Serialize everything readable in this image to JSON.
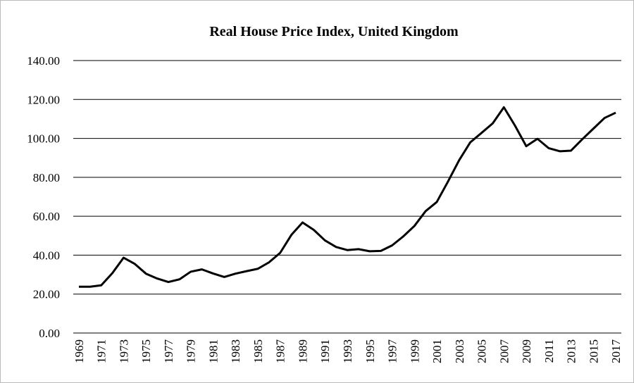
{
  "chart_data": {
    "type": "line",
    "title": "Real House Price Index, United Kingdom",
    "categories": [
      "1969",
      null,
      "1971",
      null,
      "1973",
      null,
      "1975",
      null,
      "1977",
      null,
      "1979",
      null,
      "1981",
      null,
      "1983",
      null,
      "1985",
      null,
      "1987",
      null,
      "1989",
      null,
      "1991",
      null,
      "1993",
      null,
      "1995",
      null,
      "1997",
      null,
      "1999",
      null,
      "2001",
      null,
      "2003",
      null,
      "2005",
      null,
      "2007",
      null,
      "2009",
      null,
      "2011",
      null,
      "2013",
      null,
      "2015",
      null,
      "2017"
    ],
    "values": [
      23.8,
      23.8,
      24.5,
      30.8,
      38.7,
      35.5,
      30.5,
      28.0,
      26.2,
      27.6,
      31.5,
      32.7,
      30.6,
      28.8,
      30.5,
      31.8,
      33.0,
      36.3,
      41.2,
      50.4,
      56.8,
      53.0,
      47.6,
      44.2,
      42.6,
      43.1,
      42.0,
      42.2,
      45.0,
      49.6,
      55.0,
      62.6,
      67.3,
      77.8,
      88.8,
      98.0,
      102.8,
      107.7,
      116.0,
      106.5,
      96.0,
      99.8,
      95.0,
      93.4,
      93.7,
      99.5,
      105.0,
      110.5,
      113.2
    ],
    "color": "#000000",
    "ylim": [
      0,
      140
    ],
    "yticks": [
      {
        "value": 0,
        "label": "0.00"
      },
      {
        "value": 20,
        "label": "20.00"
      },
      {
        "value": 40,
        "label": "40.00"
      },
      {
        "value": 60,
        "label": "60.00"
      },
      {
        "value": 80,
        "label": "80.00"
      },
      {
        "value": 100,
        "label": "100.00"
      },
      {
        "value": 120,
        "label": "120.00"
      },
      {
        "value": 140,
        "label": "140.00"
      }
    ],
    "grid": true
  }
}
